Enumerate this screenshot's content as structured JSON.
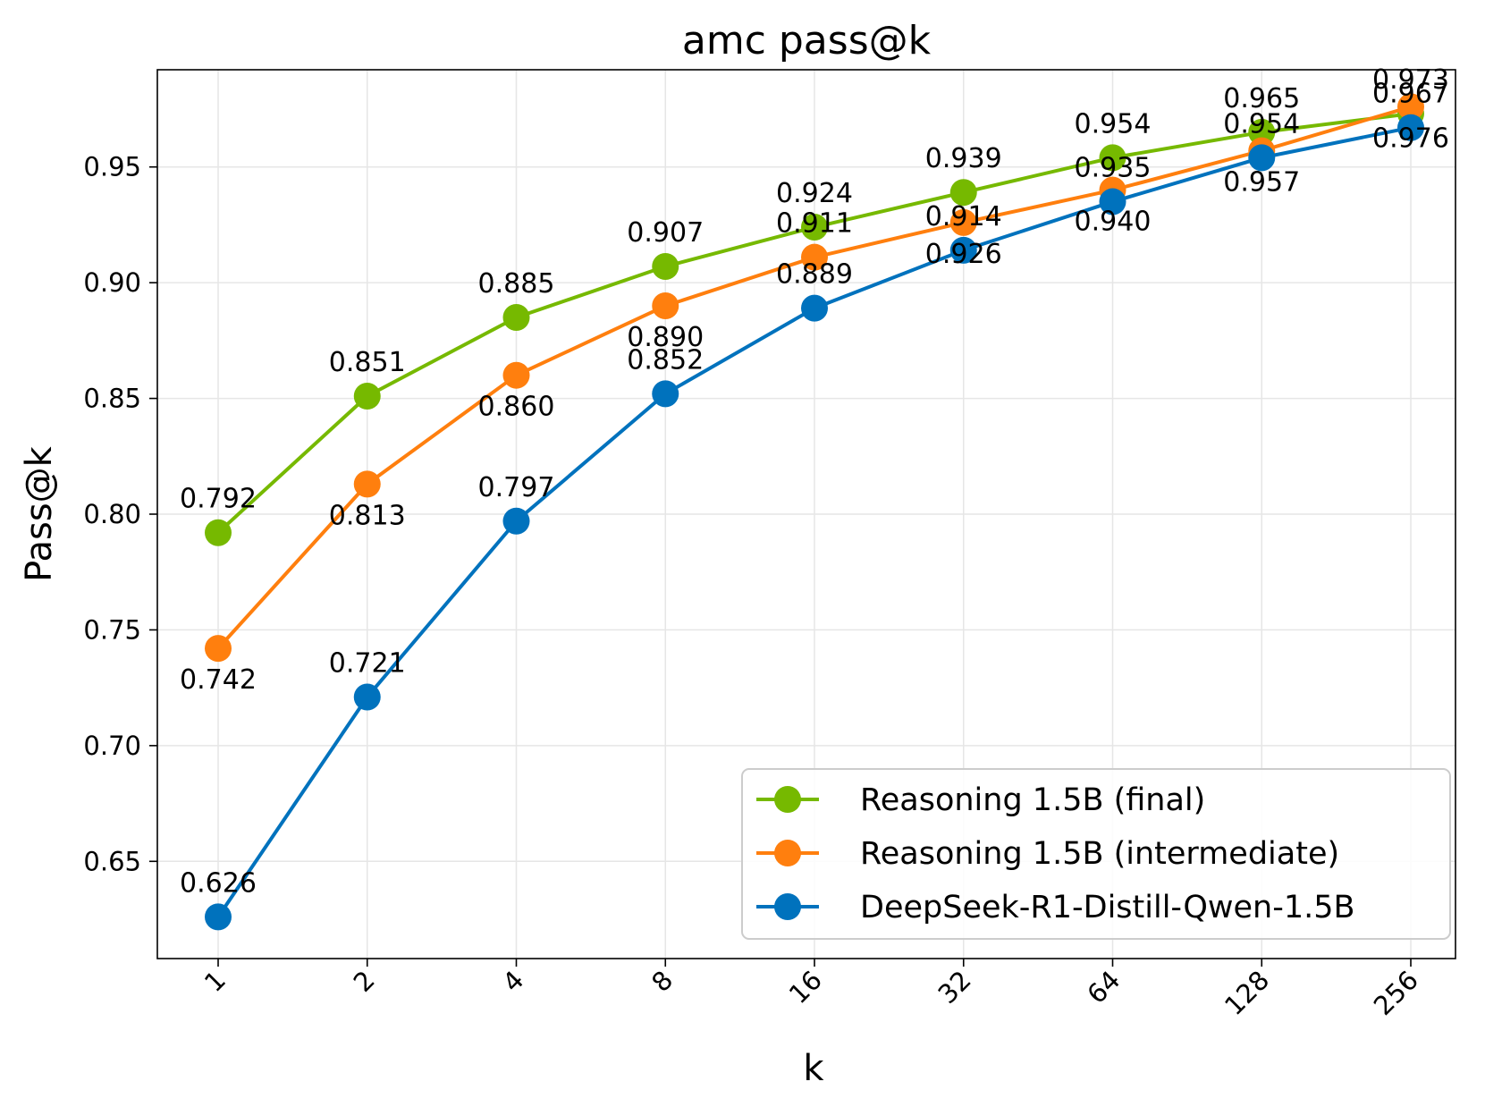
{
  "chart_data": {
    "type": "line",
    "title": "amc pass@k",
    "xlabel": "k",
    "ylabel": "Pass@k",
    "categories": [
      "1",
      "2",
      "4",
      "8",
      "16",
      "32",
      "64",
      "128",
      "256"
    ],
    "ylim": [
      0.608,
      0.992
    ],
    "yticks": [
      0.65,
      0.7,
      0.75,
      0.8,
      0.85,
      0.9,
      0.95
    ],
    "ytick_labels": [
      "0.65",
      "0.70",
      "0.75",
      "0.80",
      "0.85",
      "0.90",
      "0.95"
    ],
    "grid": true,
    "legend_position": "lower-right",
    "series": [
      {
        "name": "Reasoning 1.5B (final)",
        "color": "#76b900",
        "values": [
          0.792,
          0.851,
          0.885,
          0.907,
          0.924,
          0.939,
          0.954,
          0.965,
          0.973
        ],
        "labels": [
          "0.792",
          "0.851",
          "0.885",
          "0.907",
          "0.924",
          "0.939",
          "0.954",
          "0.965",
          "0.973"
        ],
        "label_side": [
          "above",
          "above",
          "above",
          "above",
          "above",
          "above",
          "above",
          "above",
          "above"
        ]
      },
      {
        "name": "Reasoning 1.5B (intermediate)",
        "color": "#ff7f0e",
        "values": [
          0.742,
          0.813,
          0.86,
          0.89,
          0.911,
          0.926,
          0.94,
          0.957,
          0.976
        ],
        "labels": [
          "0.742",
          "0.813",
          "0.860",
          "0.890",
          "0.911",
          "0.926",
          "0.940",
          "0.957",
          "0.976"
        ],
        "label_side": [
          "below",
          "below",
          "below",
          "below",
          "above",
          "below",
          "below",
          "below",
          "below"
        ]
      },
      {
        "name": "DeepSeek-R1-Distill-Qwen-1.5B",
        "color": "#0072bd",
        "values": [
          0.626,
          0.721,
          0.797,
          0.852,
          0.889,
          0.914,
          0.935,
          0.954,
          0.967
        ],
        "labels": [
          "0.626",
          "0.721",
          "0.797",
          "0.852",
          "0.889",
          "0.914",
          "0.935",
          "0.954",
          "0.967"
        ],
        "label_side": [
          "above",
          "above",
          "above",
          "above",
          "above",
          "above",
          "above",
          "above",
          "above"
        ]
      }
    ]
  }
}
